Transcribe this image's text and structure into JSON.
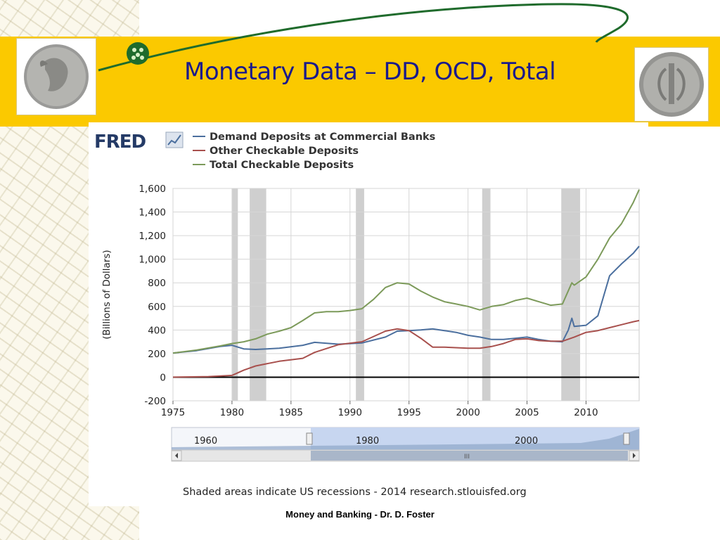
{
  "slide": {
    "title": "Monetary Data – DD, OCD, Total",
    "footer": "Money and Banking - Dr. D. Foster"
  },
  "chart_logo": "FRED",
  "chart_data": {
    "type": "line",
    "title": "",
    "xlabel": "",
    "ylabel": "(Billions of Dollars)",
    "xlim": [
      1975,
      2014.5
    ],
    "ylim": [
      -200,
      1600
    ],
    "yticks": [
      -200,
      0,
      200,
      400,
      600,
      800,
      1000,
      1200,
      1400,
      1600
    ],
    "ytick_labels": [
      "-200",
      "0",
      "200",
      "400",
      "600",
      "800",
      "1,000",
      "1,200",
      "1,400",
      "1,600"
    ],
    "xticks": [
      1975,
      1980,
      1985,
      1990,
      1995,
      2000,
      2005,
      2010
    ],
    "grid": true,
    "legend_position": "top-left",
    "recessions": [
      [
        1980.0,
        1980.5
      ],
      [
        1981.5,
        1982.9
      ],
      [
        1990.5,
        1991.2
      ],
      [
        2001.2,
        2001.9
      ],
      [
        2007.9,
        2009.5
      ]
    ],
    "series": [
      {
        "name": "Demand Deposits at Commercial Banks",
        "color": "#4b6f9e",
        "x": [
          1975,
          1977,
          1979,
          1980,
          1981,
          1982,
          1984,
          1986,
          1987,
          1989,
          1991,
          1993,
          1994,
          1995,
          1996,
          1997,
          1998,
          1999,
          2000,
          2001,
          2002,
          2003,
          2004,
          2005,
          2006,
          2007,
          2008,
          2008.5,
          2008.8,
          2009,
          2010,
          2011,
          2012,
          2013,
          2014,
          2014.5
        ],
        "y": [
          205,
          225,
          260,
          270,
          240,
          235,
          245,
          270,
          295,
          280,
          290,
          340,
          390,
          395,
          400,
          410,
          395,
          380,
          355,
          340,
          320,
          320,
          330,
          340,
          320,
          305,
          300,
          400,
          500,
          430,
          440,
          520,
          860,
          960,
          1050,
          1110
        ]
      },
      {
        "name": "Other Checkable Deposits",
        "color": "#a8504d",
        "x": [
          1975,
          1978,
          1980,
          1981,
          1982,
          1983,
          1984,
          1986,
          1987,
          1989,
          1991,
          1993,
          1994,
          1995,
          1996,
          1997,
          1998,
          2000,
          2001,
          2002,
          2003,
          2004,
          2005,
          2006,
          2007,
          2008,
          2009,
          2010,
          2011,
          2012,
          2013,
          2014,
          2014.5
        ],
        "y": [
          0,
          5,
          15,
          60,
          95,
          115,
          135,
          160,
          210,
          275,
          300,
          390,
          410,
          395,
          330,
          255,
          255,
          245,
          245,
          260,
          285,
          320,
          325,
          310,
          305,
          305,
          340,
          380,
          395,
          420,
          445,
          470,
          480
        ]
      },
      {
        "name": "Total Checkable Deposits",
        "color": "#7c9a5a",
        "x": [
          1975,
          1977,
          1979,
          1980,
          1981,
          1982,
          1983,
          1984,
          1985,
          1986,
          1987,
          1988,
          1989,
          1990,
          1991,
          1992,
          1993,
          1994,
          1995,
          1996,
          1997,
          1998,
          1999,
          2000,
          2001,
          2002,
          2003,
          2004,
          2005,
          2006,
          2007,
          2008,
          2008.8,
          2009,
          2010,
          2011,
          2012,
          2013,
          2014,
          2014.5
        ],
        "y": [
          205,
          230,
          265,
          285,
          300,
          325,
          365,
          390,
          420,
          480,
          545,
          555,
          555,
          565,
          580,
          660,
          760,
          800,
          790,
          730,
          680,
          640,
          620,
          600,
          570,
          600,
          615,
          650,
          670,
          640,
          610,
          620,
          800,
          780,
          850,
          1000,
          1180,
          1300,
          1480,
          1590
        ]
      }
    ],
    "navigator": {
      "labels": [
        "1960",
        "1980",
        "2000"
      ],
      "scroll_marker": "III"
    },
    "note": "Shaded areas indicate US recessions - 2014 research.stlouisfed.org"
  }
}
